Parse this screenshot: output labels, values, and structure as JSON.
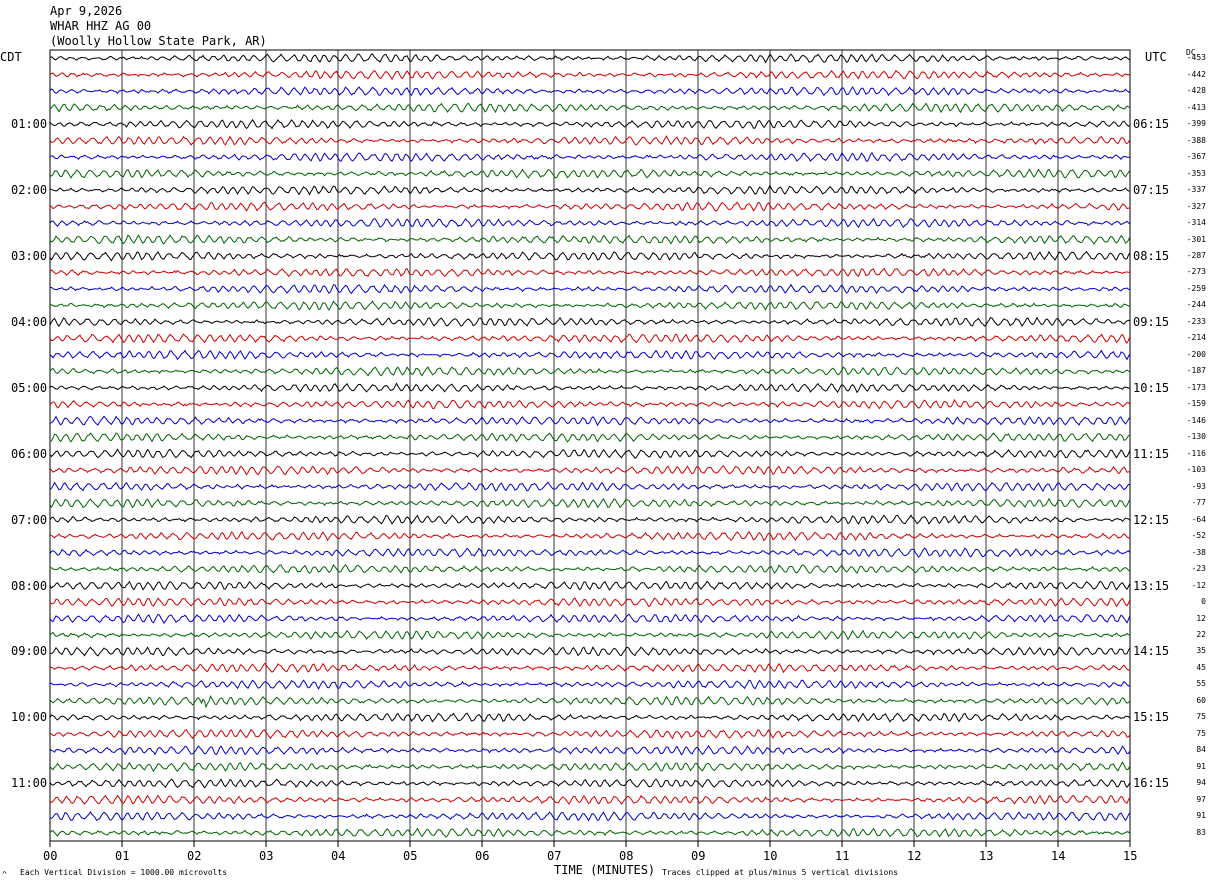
{
  "header": {
    "date": "Apr 9,2026",
    "station": "WHAR HHZ AG 00",
    "location": "(Woolly Hollow State Park, AR)"
  },
  "axes": {
    "left_label": "CDT",
    "right_label": "UTC",
    "dc_label": "DC",
    "x_label": "TIME (MINUTES)"
  },
  "footer": {
    "scale": "Each Vertical Division = 1000.00 microvolts",
    "clip_note": "Traces clipped at plus/minus 5 vertical divisions",
    "mark": "^"
  },
  "chart_data": {
    "type": "line",
    "title": "",
    "trace_colors": [
      "#000000",
      "#d00000",
      "#0000c8",
      "#006400"
    ],
    "x_ticks": [
      "00",
      "01",
      "02",
      "03",
      "04",
      "05",
      "06",
      "07",
      "08",
      "09",
      "10",
      "11",
      "12",
      "13",
      "14",
      "15"
    ],
    "xlim": [
      0,
      15
    ],
    "row_count": 48,
    "row_minutes": 15,
    "left_times": [
      "01:00",
      "02:00",
      "03:00",
      "04:00",
      "05:00",
      "06:00",
      "07:00",
      "08:00",
      "09:00",
      "10:00",
      "11:00"
    ],
    "left_time_rows": [
      4,
      8,
      12,
      16,
      20,
      24,
      28,
      32,
      36,
      40,
      44
    ],
    "right_times": [
      "06:15",
      "07:15",
      "08:15",
      "09:15",
      "10:15",
      "11:15",
      "12:15",
      "13:15",
      "14:15",
      "15:15",
      "16:15"
    ],
    "dc_offsets": [
      "-453",
      "-442",
      "-428",
      "-413",
      "-399",
      "-388",
      "-367",
      "-353",
      "-337",
      "-327",
      "-314",
      "-301",
      "-287",
      "-273",
      "-259",
      "-244",
      "-233",
      "-214",
      "-200",
      "-187",
      "-173",
      "-159",
      "-146",
      "-130",
      "-116",
      "-103",
      "-93",
      "-77",
      "-64",
      "-52",
      "-38",
      "-23",
      "-12",
      "0",
      "12",
      "22",
      "35",
      "45",
      "55",
      "60",
      "75",
      "75",
      "84",
      "91",
      "94",
      "97",
      "91",
      "83"
    ],
    "events": [
      {
        "row": 39,
        "minute": 2.15,
        "note": "small green burst"
      }
    ]
  }
}
